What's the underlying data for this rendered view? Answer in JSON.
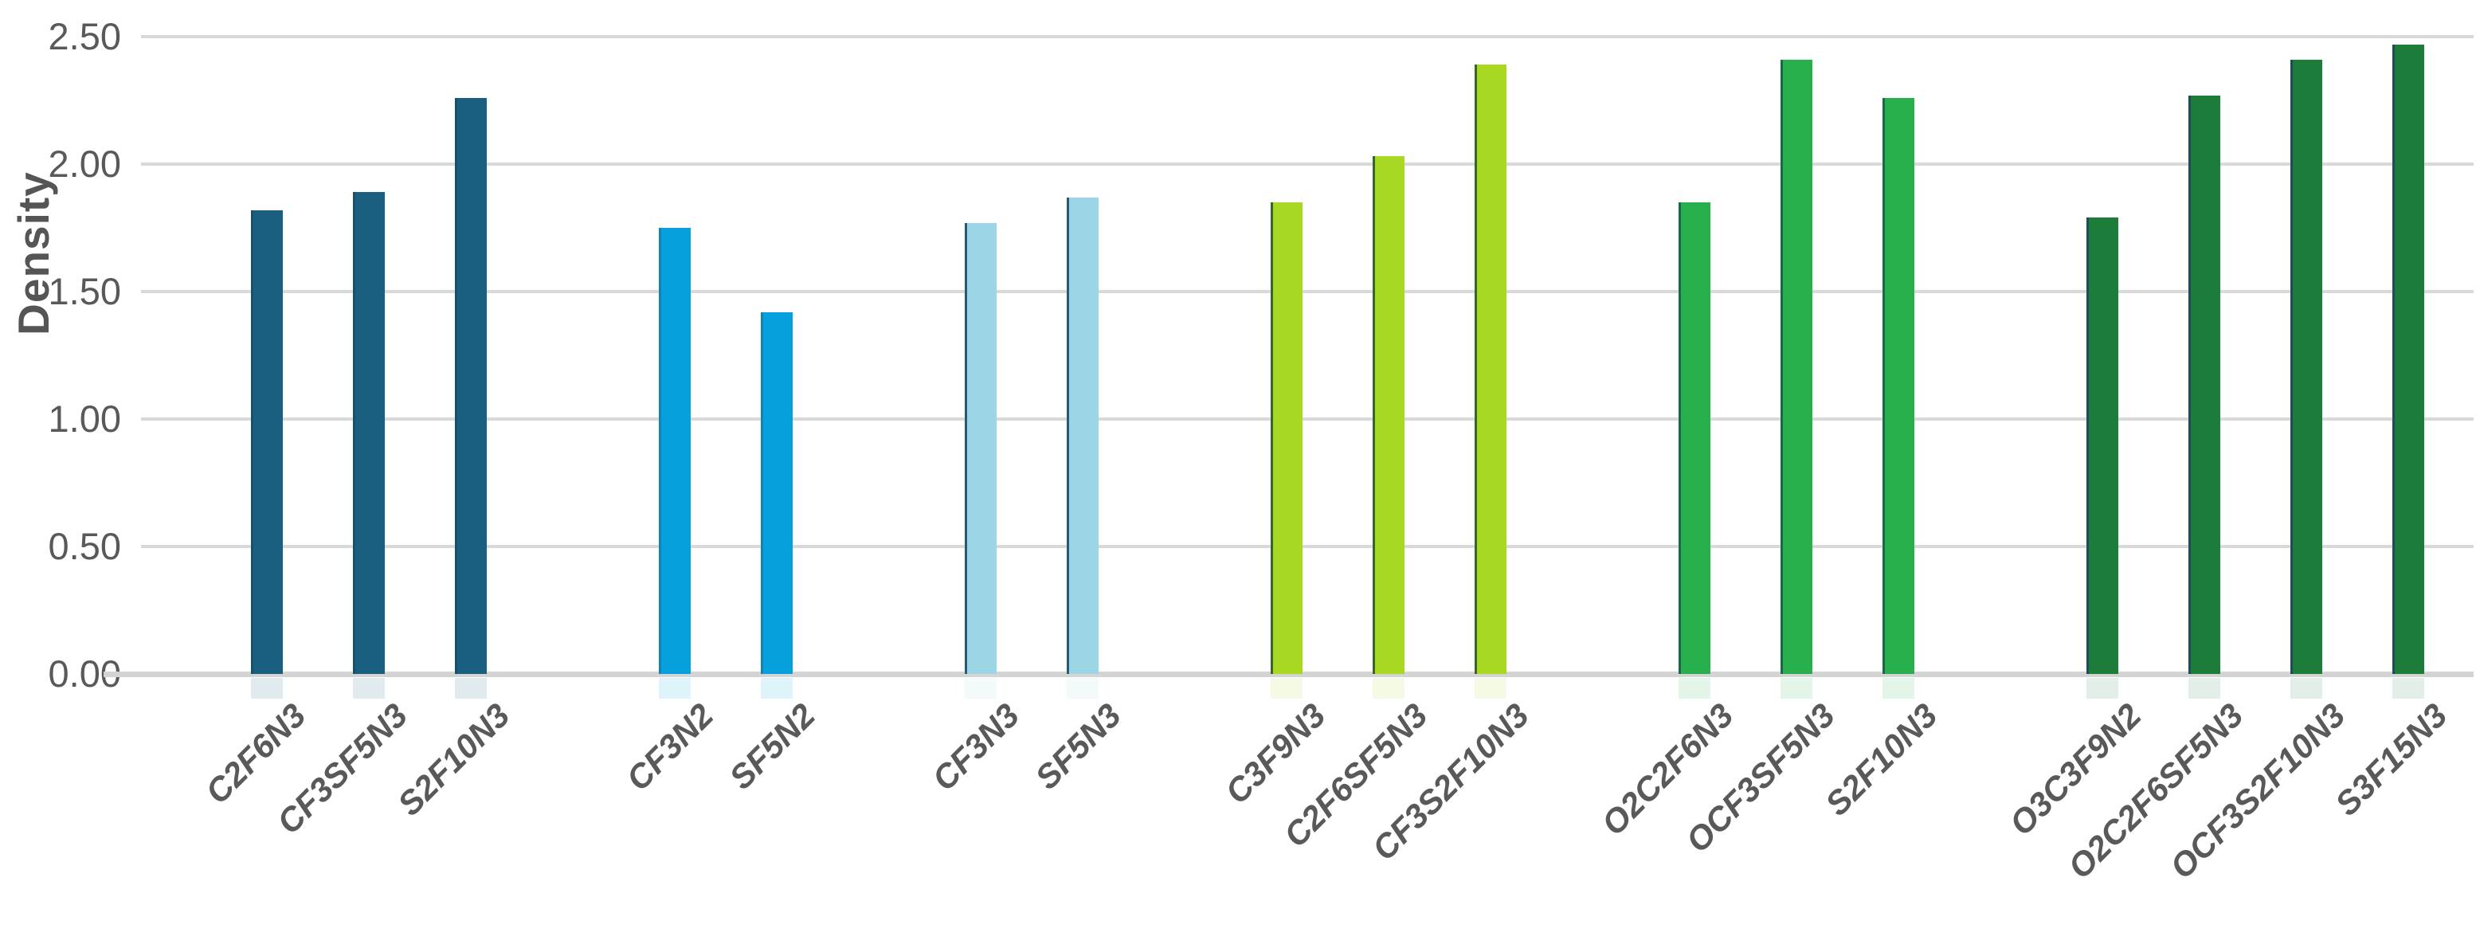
{
  "chart_data": {
    "type": "bar",
    "title": "",
    "xlabel": "",
    "ylabel": "Density",
    "ylim": [
      0,
      2.5
    ],
    "ytick_step": 0.5,
    "yticks": [
      "2.50",
      "2.00",
      "1.50",
      "1.00",
      "0.50",
      "0.00"
    ],
    "grid": true,
    "legend_position": "none",
    "categories": [
      "C2F6N3",
      "CF3SF5N3",
      "S2F10N3",
      "CF3N2",
      "SF5N2",
      "CF3N3",
      "SF5N3",
      "C3F9N3",
      "C2F6SF5N3",
      "CF3S2F10N3",
      "O2C2F6N3",
      "OCF3SF5N3",
      "S2F10N3",
      "O3C3F9N2",
      "O2C2F6SF5N3",
      "OCF3S2F10N3",
      "S3F15N3"
    ],
    "values": [
      1.82,
      1.89,
      2.26,
      1.75,
      1.42,
      1.77,
      1.87,
      1.85,
      2.03,
      2.39,
      1.85,
      2.41,
      2.26,
      1.79,
      2.27,
      2.41,
      2.47
    ],
    "groups": [
      {
        "name": "group-1-dark-teal",
        "color": "#1b5f80",
        "edge_color": "#16506c",
        "bars": [
          {
            "label": "C2F6N3",
            "value": 1.82
          },
          {
            "label": "CF3SF5N3",
            "value": 1.89
          },
          {
            "label": "S2F10N3",
            "value": 2.26
          }
        ]
      },
      {
        "name": "group-2-bright-blue",
        "color": "#06a0de",
        "edge_color": "#0b85b5",
        "bars": [
          {
            "label": "CF3N2",
            "value": 1.75
          },
          {
            "label": "SF5N2",
            "value": 1.42
          }
        ]
      },
      {
        "name": "group-3-light-blue",
        "color": "#9cd6e6",
        "edge_color": "#235c77",
        "bars": [
          {
            "label": "CF3N3",
            "value": 1.77
          },
          {
            "label": "SF5N3",
            "value": 1.87
          }
        ]
      },
      {
        "name": "group-4-yellow-green",
        "color": "#a9d823",
        "edge_color": "#34691f",
        "bars": [
          {
            "label": "C3F9N3",
            "value": 1.85
          },
          {
            "label": "C2F6SF5N3",
            "value": 2.03
          },
          {
            "label": "CF3S2F10N3",
            "value": 2.39
          }
        ]
      },
      {
        "name": "group-5-medium-green",
        "color": "#28b04c",
        "edge_color": "#176b46",
        "bars": [
          {
            "label": "O2C2F6N3",
            "value": 1.85
          },
          {
            "label": "OCF3SF5N3",
            "value": 2.41
          },
          {
            "label": "S2F10N3",
            "value": 2.26
          }
        ]
      },
      {
        "name": "group-6-dark-green",
        "color": "#1e7c3a",
        "edge_color": "#1a4f57",
        "bars": [
          {
            "label": "O3C3F9N2",
            "value": 1.79
          },
          {
            "label": "O2C2F6SF5N3",
            "value": 2.27
          },
          {
            "label": "OCF3S2F10N3",
            "value": 2.41
          },
          {
            "label": "S3F15N3",
            "value": 2.47
          }
        ]
      }
    ],
    "colors": {
      "gridline": "#d9d9d9",
      "axis_line": "#d4d4d4",
      "tick_text": "#595959",
      "axis_title_text": "#555555",
      "background": "#ffffff"
    }
  }
}
